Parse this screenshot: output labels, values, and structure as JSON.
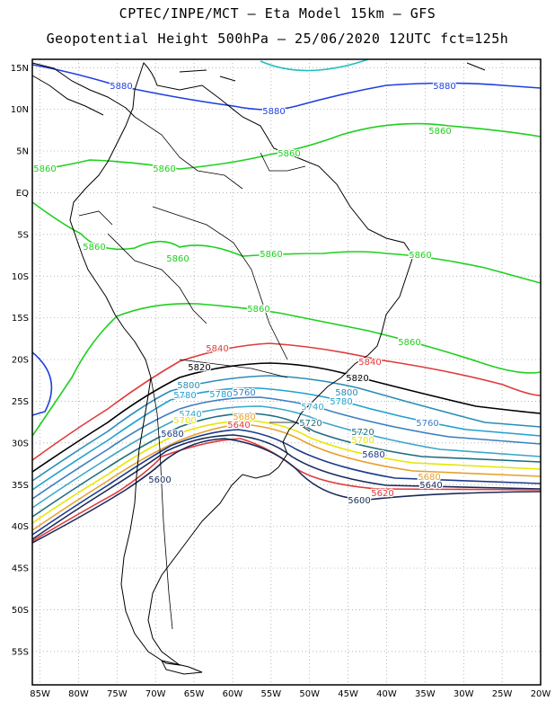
{
  "title": {
    "line1": "CPTEC/INPE/MCT –  Eta Model 15km – GFS",
    "line2": "Geopotential Height 500hPa – 25/06/2020 12UTC fct=125h"
  },
  "map": {
    "variable": "Geopotential Height",
    "level": "500hPa",
    "model": "Eta Model 15km",
    "driver": "GFS",
    "init": "25/06/2020 12UTC",
    "forecast": "fct=125h",
    "lat_range": [
      -59,
      16
    ],
    "lon_range": [
      -86,
      -20
    ],
    "lat_labels": [
      "15N",
      "10N",
      "5N",
      "EQ",
      "5S",
      "10S",
      "15S",
      "20S",
      "25S",
      "30S",
      "35S",
      "40S",
      "45S",
      "50S",
      "55S"
    ],
    "lon_labels": [
      "85W",
      "80W",
      "75W",
      "70W",
      "65W",
      "60W",
      "55W",
      "50W",
      "45W",
      "40W",
      "35W",
      "30W",
      "25W",
      "20W"
    ],
    "contour_labels": [
      {
        "text": "5880",
        "color": "#1f3fe0"
      },
      {
        "text": "5880",
        "color": "#1f3fe0"
      },
      {
        "text": "5880",
        "color": "#1f3fe0"
      },
      {
        "text": "5860",
        "color": "#1fcf1f"
      },
      {
        "text": "5860",
        "color": "#1fcf1f"
      },
      {
        "text": "5860",
        "color": "#1fcf1f"
      },
      {
        "text": "5860",
        "color": "#1fcf1f"
      },
      {
        "text": "5860",
        "color": "#1fcf1f"
      },
      {
        "text": "5860",
        "color": "#1fcf1f"
      },
      {
        "text": "5860",
        "color": "#1fcf1f"
      },
      {
        "text": "5860",
        "color": "#1fcf1f"
      },
      {
        "text": "5860",
        "color": "#1fcf1f"
      },
      {
        "text": "5860",
        "color": "#1fcf1f"
      },
      {
        "text": "5840",
        "color": "#e03a3a"
      },
      {
        "text": "5840",
        "color": "#e03a3a"
      },
      {
        "text": "5820",
        "color": "#000000"
      },
      {
        "text": "5820",
        "color": "#000000"
      },
      {
        "text": "5800",
        "color": "#2a8cb8"
      },
      {
        "text": "5800",
        "color": "#2a8cb8"
      },
      {
        "text": "5780",
        "color": "#1fa0cf"
      },
      {
        "text": "5780",
        "color": "#1fa0cf"
      },
      {
        "text": "5780",
        "color": "#1fa0cf"
      },
      {
        "text": "5760",
        "color": "#3a7ec0"
      },
      {
        "text": "5760",
        "color": "#3a7ec0"
      },
      {
        "text": "5740",
        "color": "#3aa6c8"
      },
      {
        "text": "5740",
        "color": "#3aa6c8"
      },
      {
        "text": "5720",
        "color": "#1d6e7e"
      },
      {
        "text": "5720",
        "color": "#1d6e7e"
      },
      {
        "text": "5700",
        "color": "#e6e600"
      },
      {
        "text": "5700",
        "color": "#e6e600"
      },
      {
        "text": "5680",
        "color": "#e6a030"
      },
      {
        "text": "5680",
        "color": "#1a3a8a"
      },
      {
        "text": "5680",
        "color": "#1a3a8a"
      },
      {
        "text": "5680",
        "color": "#e6a030"
      },
      {
        "text": "5640",
        "color": "#e03a3a"
      },
      {
        "text": "5640",
        "color": "#1a2a5a"
      },
      {
        "text": "5620",
        "color": "#e03a3a"
      },
      {
        "text": "5600",
        "color": "#1a2a5a"
      },
      {
        "text": "5600",
        "color": "#1a2a5a"
      }
    ]
  }
}
